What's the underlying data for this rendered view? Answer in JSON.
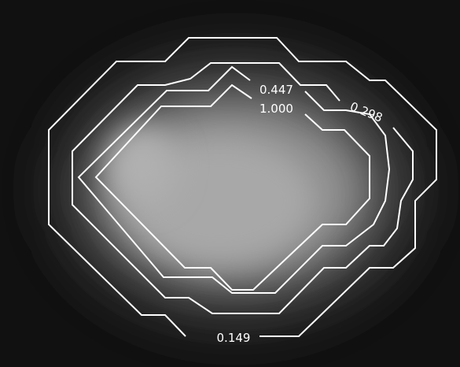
{
  "chart_data": {
    "type": "heatmap",
    "title": "",
    "xlabel": "",
    "ylabel": "",
    "colormap": "gray",
    "background_color": "#111111",
    "contour_color": "#ffffff",
    "axes_visible": false,
    "grid": false,
    "contour_levels": [
      {
        "level": 0.149,
        "label": "0.149"
      },
      {
        "level": 0.298,
        "label": "0.298"
      },
      {
        "level": 0.447,
        "label": "0.447"
      },
      {
        "level": 1.0,
        "label": "1.000"
      }
    ]
  }
}
